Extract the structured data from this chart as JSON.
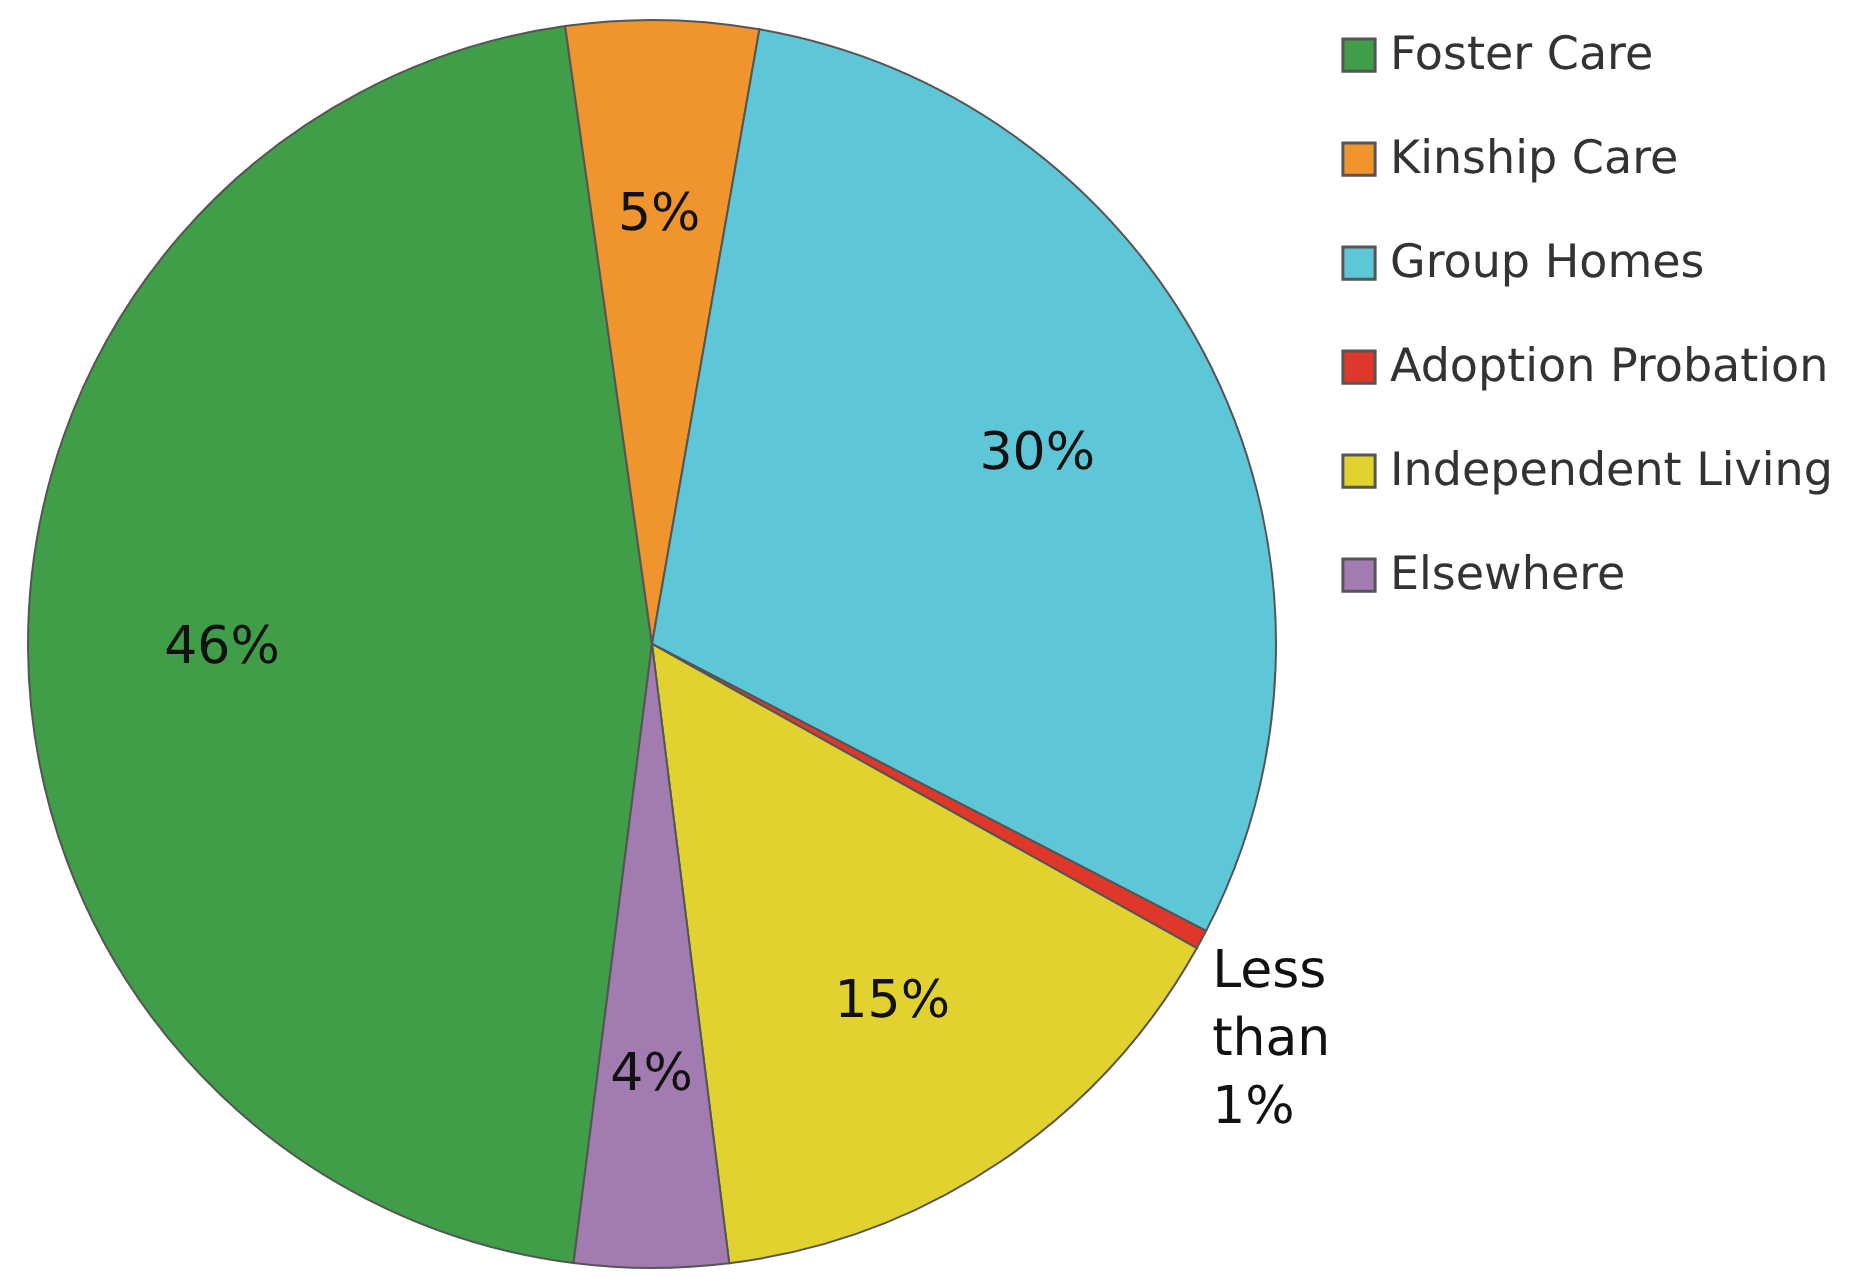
{
  "chart_data": {
    "type": "pie",
    "categories": [
      "Foster Care",
      "Kinship Care",
      "Group Homes",
      "Adoption Probation",
      "Independent Living",
      "Elsewhere"
    ],
    "values": [
      46,
      5,
      30,
      0.5,
      15,
      4
    ],
    "colors": [
      "#3f9e47",
      "#f0952e",
      "#5ec7d7",
      "#e0372b",
      "#e2d22f",
      "#a27cb1"
    ],
    "value_labels": [
      "46%",
      "5%",
      "30%",
      "Less than 1%",
      "15%",
      "4%"
    ],
    "legend": "top right"
  }
}
